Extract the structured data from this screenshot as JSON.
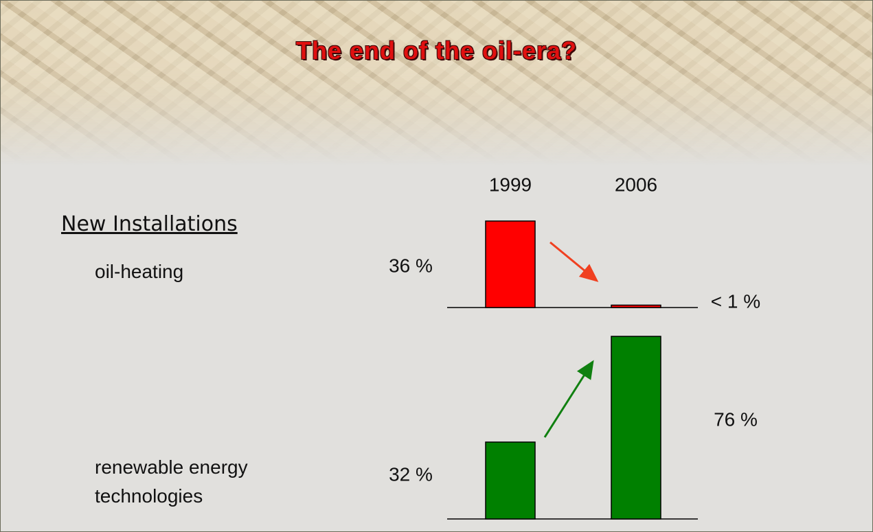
{
  "chart_data": {
    "type": "bar",
    "title": "The end of the oil-era?",
    "subtitle": "New Installations",
    "categories": [
      "1999",
      "2006"
    ],
    "series": [
      {
        "name": "oil-heating",
        "color": "#ff0000",
        "values": [
          36,
          1
        ],
        "value_labels": [
          "36 %",
          "< 1 %"
        ]
      },
      {
        "name": "renewable energy technologies",
        "color": "#008000",
        "values": [
          32,
          76
        ],
        "value_labels": [
          "32 %",
          "76 %"
        ]
      }
    ]
  }
}
